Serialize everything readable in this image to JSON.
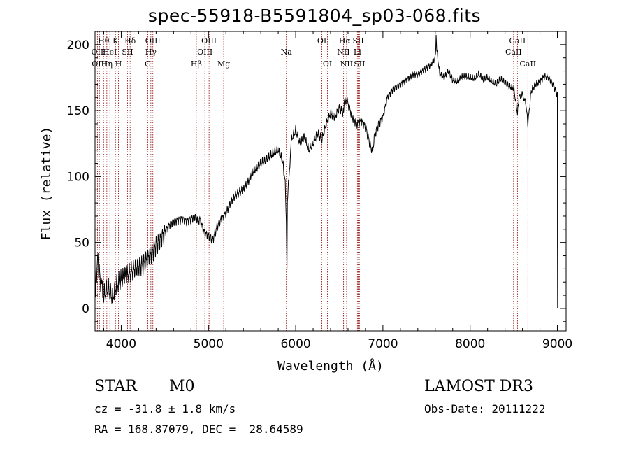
{
  "chart_data": {
    "type": "line",
    "title": "spec-55918-B5591804_sp03-068.fits",
    "xlabel": "Wavelength (Å)",
    "ylabel": "Flux (relative)",
    "xlim": [
      3700,
      9100
    ],
    "ylim": [
      -17,
      210
    ],
    "xticks": [
      4000,
      5000,
      6000,
      7000,
      8000,
      9000
    ],
    "yticks": [
      0,
      50,
      100,
      150,
      200
    ],
    "grid": false,
    "line_color": "#000000",
    "marker_color": "#8b0000",
    "series": [
      {
        "x": [
          3700,
          3730,
          3760,
          3800,
          3850,
          3900,
          3950,
          4000,
          4050,
          4100,
          4150,
          4200,
          4250,
          4300,
          4350,
          4400,
          4450,
          4500,
          4550,
          4600,
          4650,
          4700,
          4750,
          4800,
          4850,
          4880,
          4900,
          4950,
          5000,
          5050,
          5100,
          5150,
          5180,
          5200,
          5250,
          5300,
          5350,
          5400,
          5450,
          5500,
          5550,
          5600,
          5650,
          5700,
          5750,
          5800,
          5850,
          5880,
          5893,
          5900,
          5905,
          5950,
          6000,
          6050,
          6100,
          6150,
          6200,
          6250,
          6300,
          6350,
          6400,
          6450,
          6500,
          6550,
          6563,
          6600,
          6650,
          6700,
          6750,
          6800,
          6850,
          6880,
          6900,
          6950,
          7000,
          7050,
          7100,
          7150,
          7200,
          7250,
          7300,
          7350,
          7400,
          7450,
          7500,
          7550,
          7600,
          7610,
          7620,
          7650,
          7700,
          7750,
          7800,
          7850,
          7900,
          7950,
          8000,
          8050,
          8100,
          8150,
          8200,
          8250,
          8300,
          8350,
          8400,
          8450,
          8500,
          8542,
          8560,
          8600,
          8640,
          8662,
          8700,
          8750,
          8800,
          8850,
          8900,
          8950,
          9000,
          9001,
          9002
        ],
        "values": [
          10,
          38,
          22,
          10,
          15,
          8,
          18,
          22,
          25,
          27,
          30,
          32,
          33,
          38,
          42,
          48,
          52,
          58,
          63,
          66,
          67,
          68,
          66,
          68,
          70,
          66,
          68,
          58,
          55,
          52,
          62,
          68,
          70,
          72,
          80,
          85,
          88,
          90,
          95,
          103,
          106,
          110,
          112,
          115,
          118,
          120,
          112,
          95,
          65,
          30,
          80,
          128,
          135,
          125,
          130,
          120,
          125,
          133,
          128,
          140,
          148,
          145,
          152,
          148,
          160,
          155,
          145,
          140,
          142,
          138,
          125,
          118,
          130,
          140,
          145,
          160,
          165,
          168,
          170,
          172,
          175,
          178,
          177,
          180,
          182,
          185,
          190,
          205,
          195,
          178,
          175,
          180,
          173,
          172,
          175,
          176,
          175,
          174,
          178,
          173,
          175,
          172,
          170,
          174,
          171,
          168,
          167,
          148,
          160,
          162,
          155,
          140,
          165,
          170,
          172,
          176,
          175,
          170,
          162,
          50,
          0
        ]
      }
    ],
    "line_markers": [
      {
        "w": 3727,
        "label": "OII",
        "row": 1
      },
      {
        "w": 3750,
        "label": "OIII",
        "row": 2
      },
      {
        "w": 3798,
        "label": "Hθ",
        "row": 0
      },
      {
        "w": 3835,
        "label": "Hη",
        "row": 2
      },
      {
        "w": 3870,
        "label": "HeI",
        "row": 1
      },
      {
        "w": 3934,
        "label": "K",
        "row": 0
      },
      {
        "w": 3969,
        "label": "H",
        "row": 2
      },
      {
        "w": 4072,
        "label": "SII",
        "row": 1
      },
      {
        "w": 4102,
        "label": "Hδ",
        "row": 0
      },
      {
        "w": 4304,
        "label": "G",
        "row": 2
      },
      {
        "w": 4340,
        "label": "Hγ",
        "row": 1
      },
      {
        "w": 4363,
        "label": "OIII",
        "row": 0
      },
      {
        "w": 4861,
        "label": "Hβ",
        "row": 2
      },
      {
        "w": 4959,
        "label": "OIII",
        "row": 1
      },
      {
        "w": 5007,
        "label": "OIII",
        "row": 0
      },
      {
        "w": 5175,
        "label": "Mg",
        "row": 2
      },
      {
        "w": 5893,
        "label": "Na",
        "row": 1
      },
      {
        "w": 6300,
        "label": "OI",
        "row": 0
      },
      {
        "w": 6364,
        "label": "OI",
        "row": 2
      },
      {
        "w": 6548,
        "label": "NII",
        "row": 1
      },
      {
        "w": 6563,
        "label": "Hα",
        "row": 0
      },
      {
        "w": 6584,
        "label": "NII",
        "row": 2
      },
      {
        "w": 6707,
        "label": "Li",
        "row": 1
      },
      {
        "w": 6717,
        "label": "SII",
        "row": 0
      },
      {
        "w": 6731,
        "label": "SII",
        "row": 2
      },
      {
        "w": 8498,
        "label": "CaII",
        "row": 1
      },
      {
        "w": 8542,
        "label": "CaII",
        "row": 0
      },
      {
        "w": 8662,
        "label": "CaII",
        "row": 2
      }
    ]
  },
  "info": {
    "class": "STAR",
    "subclass": "M0",
    "survey": "LAMOST DR3",
    "cz": "cz = -31.8 ± 1.8 km/s",
    "coords": "RA = 168.87079, DEC =  28.64589",
    "obs_date": "Obs-Date: 20111222"
  }
}
